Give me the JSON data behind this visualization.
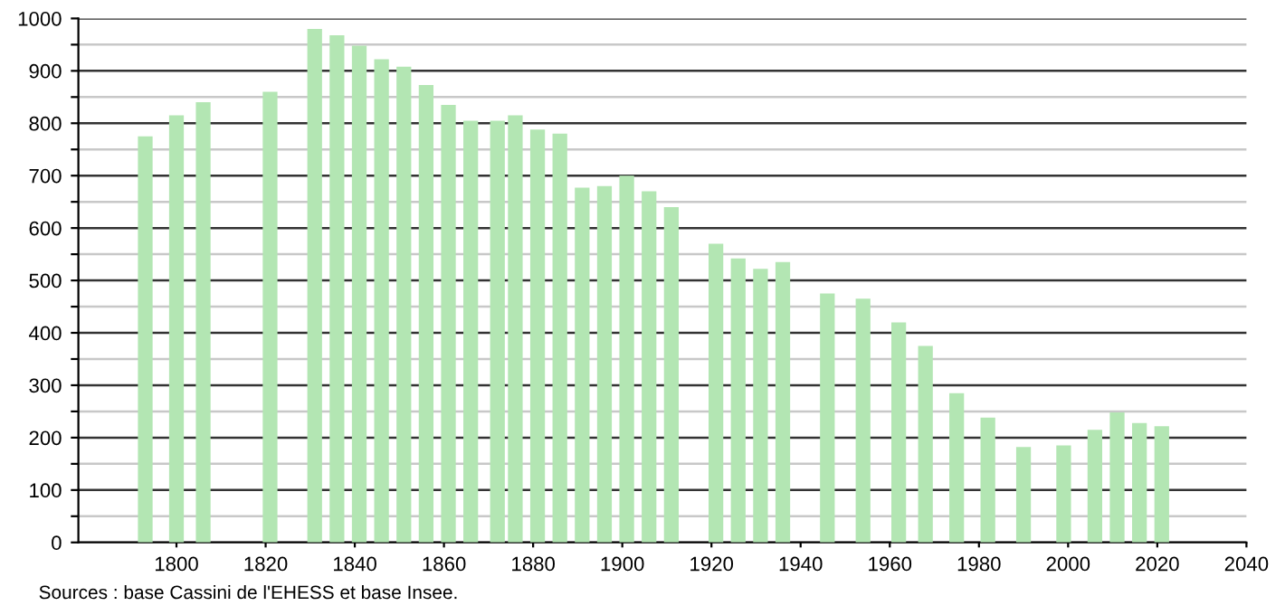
{
  "chart_data": {
    "type": "bar",
    "x": [
      1793,
      1800,
      1806,
      1821,
      1831,
      1836,
      1841,
      1846,
      1851,
      1856,
      1861,
      1866,
      1872,
      1876,
      1881,
      1886,
      1891,
      1896,
      1901,
      1906,
      1911,
      1921,
      1926,
      1931,
      1936,
      1946,
      1954,
      1962,
      1968,
      1975,
      1982,
      1990,
      1999,
      2006,
      2011,
      2016,
      2021
    ],
    "values": [
      775,
      815,
      840,
      860,
      980,
      968,
      948,
      922,
      908,
      873,
      835,
      805,
      805,
      815,
      788,
      780,
      677,
      680,
      700,
      670,
      640,
      570,
      542,
      522,
      535,
      475,
      465,
      420,
      375,
      285,
      238,
      182,
      185,
      215,
      248,
      228,
      222
    ],
    "color": "#b3e6b3",
    "xlim": [
      1778,
      2040
    ],
    "xticks": [
      1800,
      1820,
      1840,
      1860,
      1880,
      1900,
      1920,
      1940,
      1960,
      1980,
      2000,
      2020,
      2040
    ],
    "ylim": [
      0,
      1000
    ],
    "yticks": [
      0,
      {
        "value": 50,
        "label": null
      },
      100,
      {
        "value": 150,
        "label": null
      },
      200,
      {
        "value": 250,
        "label": null
      },
      300,
      {
        "value": 350,
        "label": null
      },
      400,
      {
        "value": 450,
        "label": null
      },
      500,
      {
        "value": 550,
        "label": null
      },
      600,
      {
        "value": 650,
        "label": null
      },
      700,
      {
        "value": 750,
        "label": null
      },
      800,
      {
        "value": 850,
        "label": null
      },
      900,
      {
        "value": 950,
        "label": null
      },
      1000
    ],
    "grid": "y",
    "annotations": [
      "Sources : base Cassini de l'EHESS et base Insee."
    ]
  }
}
